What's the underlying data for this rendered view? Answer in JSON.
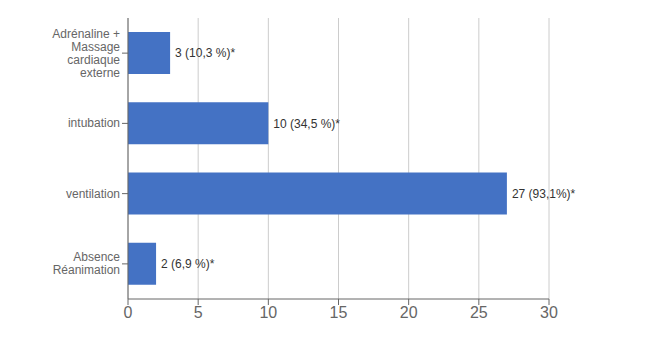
{
  "chart_data": {
    "type": "bar",
    "orientation": "horizontal",
    "categories": [
      "Absence\nRéanimation",
      "ventilation",
      "intubation",
      "Adrénaline +\nMassage\ncardiaque\nexterne"
    ],
    "values": [
      2,
      27,
      10,
      3
    ],
    "value_labels": [
      "2 (6,9 %)*",
      "27 (93,1%)*",
      "10 (34,5 %)*",
      "3 (10,3 %)*"
    ],
    "data_labels": true,
    "color": "#4472C4",
    "xlim": [
      0,
      30
    ],
    "xticks": [
      0,
      5,
      10,
      15,
      20,
      25,
      30
    ],
    "grid": true
  }
}
